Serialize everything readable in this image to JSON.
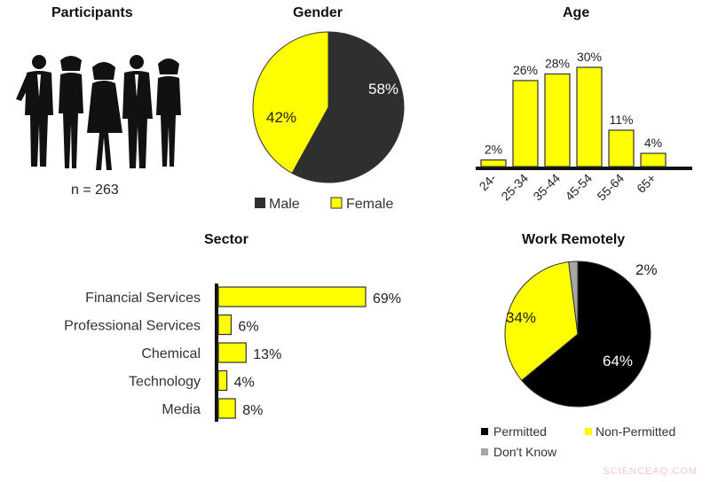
{
  "participants": {
    "title": "Participants",
    "n_label": "n = 263"
  },
  "colors": {
    "dark": "#2f2f2f",
    "black": "#000000",
    "yellow": "#ffff00",
    "gray": "#a6a6a6",
    "outline": "#333333"
  },
  "watermark": "SCIENCEAQ.COM",
  "chart_data": [
    {
      "id": "gender",
      "type": "pie",
      "title": "Gender",
      "slices": [
        {
          "label": "Male",
          "value": 58,
          "color": "#2f2f2f",
          "text": "58%"
        },
        {
          "label": "Female",
          "value": 42,
          "color": "#ffff00",
          "text": "42%"
        }
      ],
      "legend": [
        "Male",
        "Female"
      ],
      "legend_position": "bottom"
    },
    {
      "id": "age",
      "type": "bar",
      "title": "Age",
      "categories": [
        "24-",
        "25-34",
        "35-44",
        "45-54",
        "55-64",
        "65+"
      ],
      "values": [
        2,
        26,
        28,
        30,
        11,
        4
      ],
      "labels": [
        "2%",
        "26%",
        "28%",
        "30%",
        "11%",
        "4%"
      ],
      "ylim": [
        0,
        30
      ],
      "grid": false
    },
    {
      "id": "sector",
      "type": "bar",
      "orientation": "horizontal",
      "title": "Sector",
      "categories": [
        "Financial Services",
        "Professional Services",
        "Chemical",
        "Technology",
        "Media"
      ],
      "values": [
        69,
        6,
        13,
        4,
        8
      ],
      "labels": [
        "69%",
        "6%",
        "13%",
        "4%",
        "8%"
      ],
      "xlim": [
        0,
        69
      ],
      "grid": false
    },
    {
      "id": "remote",
      "type": "pie",
      "title": "Work Remotely",
      "slices": [
        {
          "label": "Permitted",
          "value": 64,
          "color": "#000000",
          "text": "64%"
        },
        {
          "label": "Non-Permitted",
          "value": 34,
          "color": "#ffff00",
          "text": "34%"
        },
        {
          "label": "Don't Know",
          "value": 2,
          "color": "#a6a6a6",
          "text": "2%"
        }
      ],
      "legend": [
        "Permitted",
        "Non-Permitted",
        "Don't Know"
      ],
      "legend_position": "bottom"
    }
  ]
}
